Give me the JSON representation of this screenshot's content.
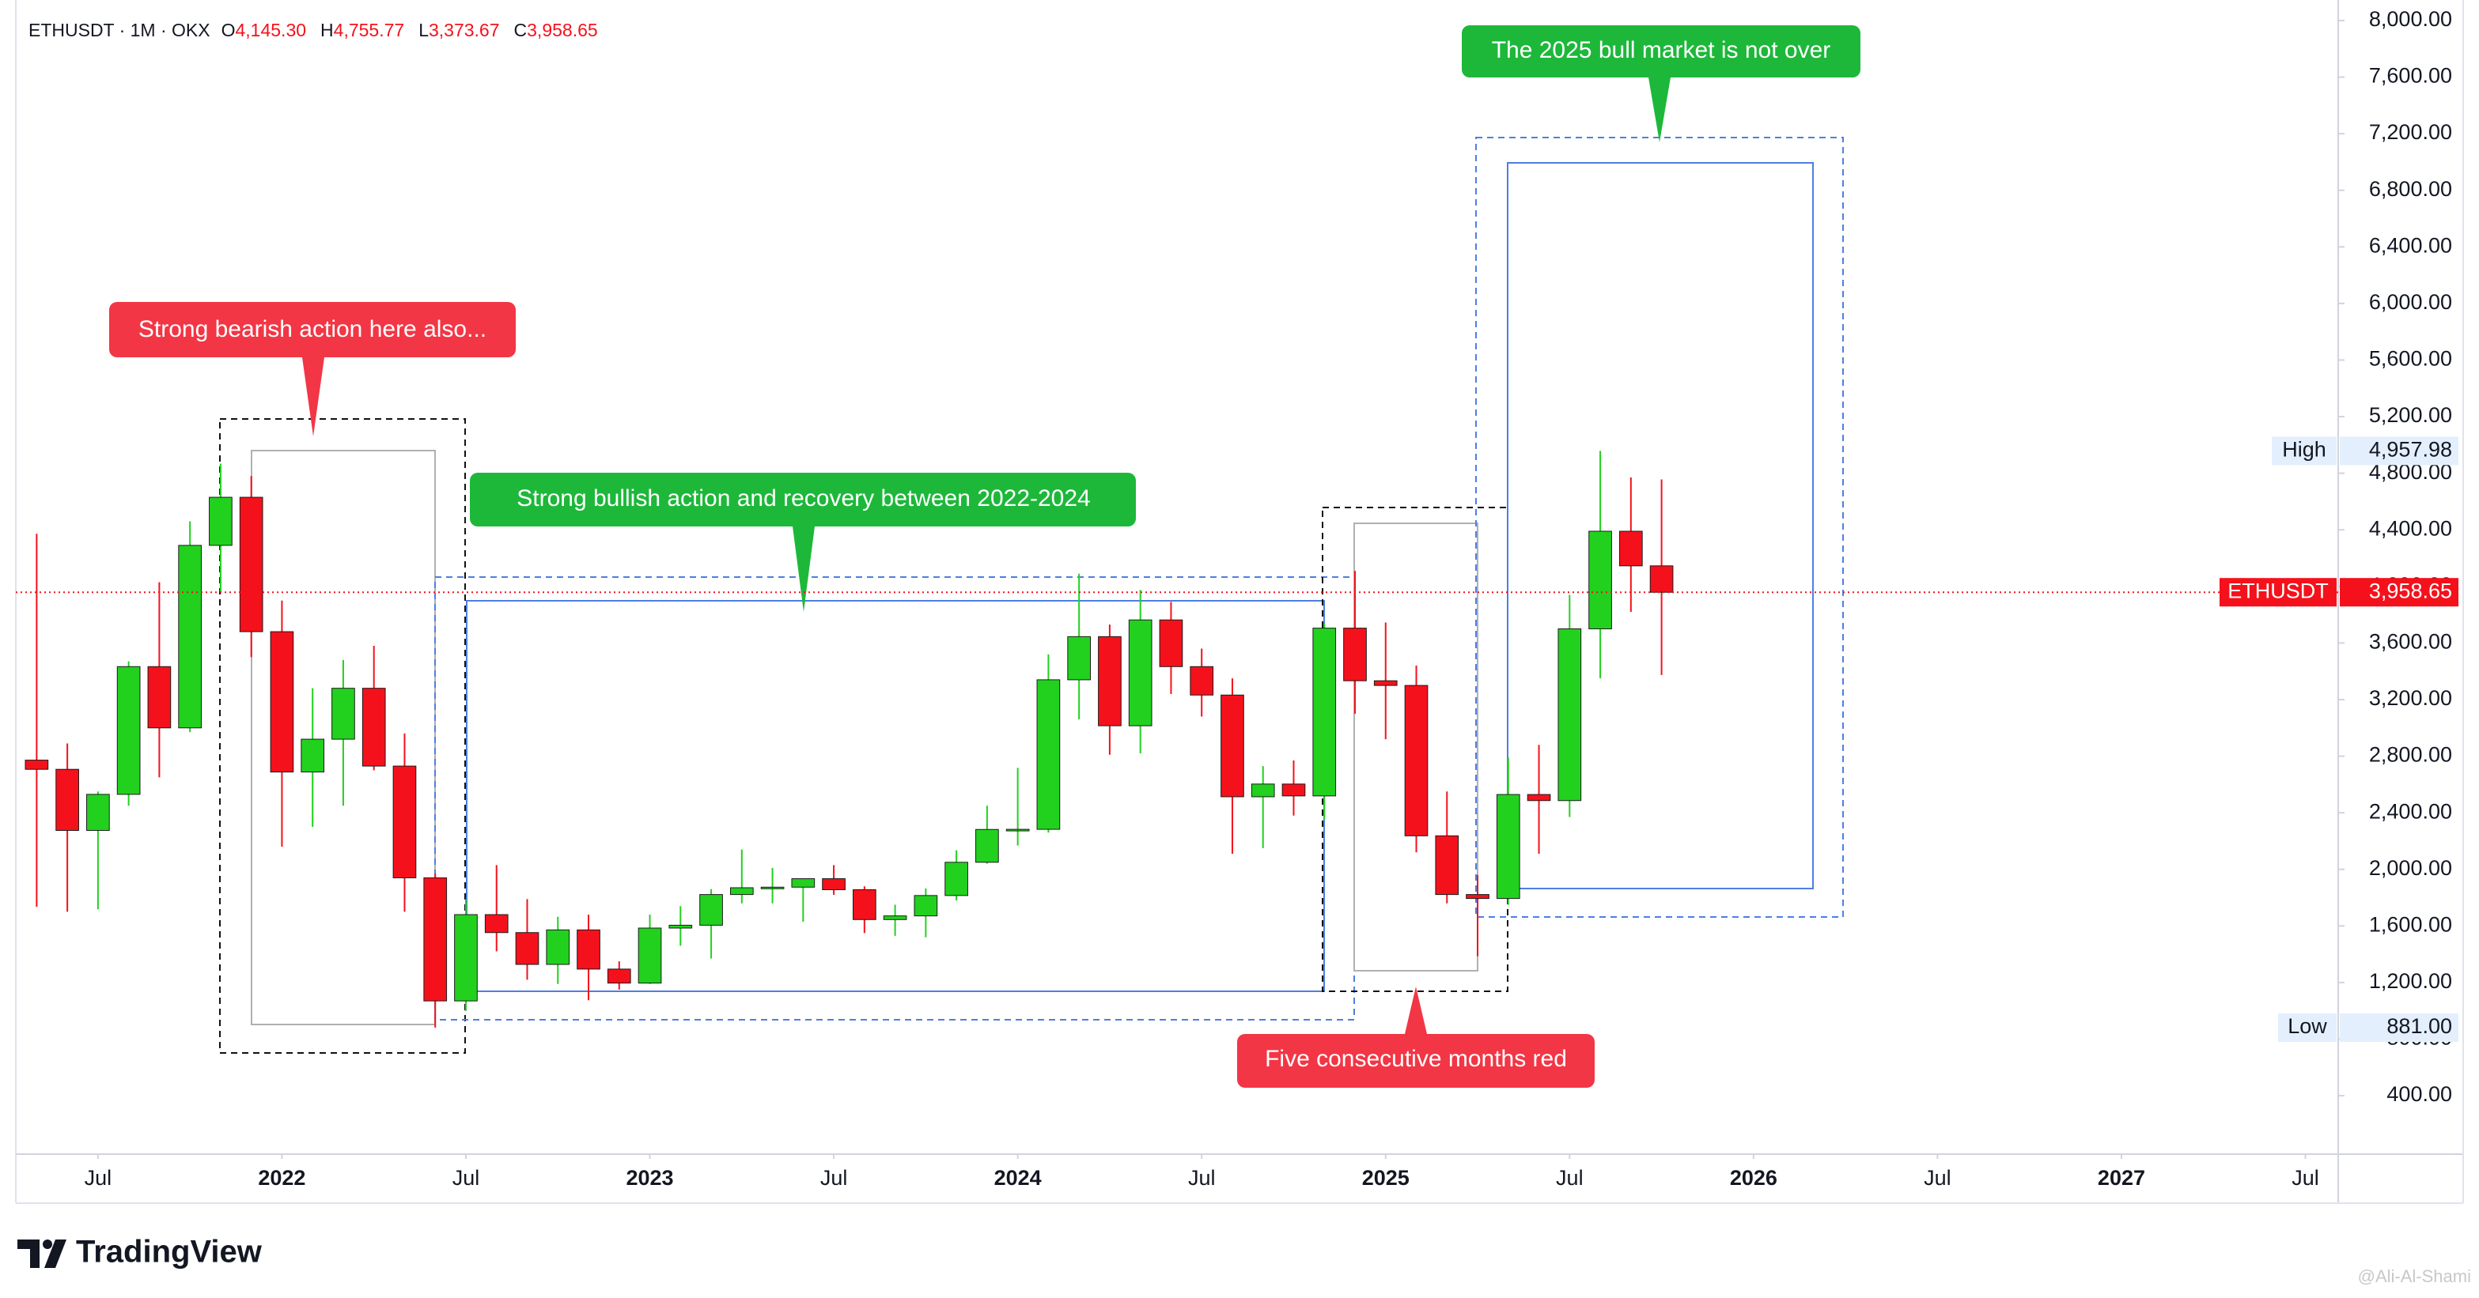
{
  "chart_data": {
    "type": "candlestick",
    "symbol_line": "ETHUSDT · 1M · OKX",
    "ohlc_legend": [
      {
        "key": "O",
        "text": "4,145.30"
      },
      {
        "key": "H",
        "text": "4,755.77"
      },
      {
        "key": "L",
        "text": "3,373.67"
      },
      {
        "key": "C",
        "text": "3,958.65"
      }
    ],
    "up_color": "#22d11e",
    "down_color": "#f5111b",
    "x": [
      0,
      1,
      2,
      3,
      4,
      5,
      6,
      7,
      8,
      9,
      10,
      11,
      12,
      13,
      14,
      15,
      16,
      17,
      18,
      19,
      20,
      21,
      22,
      23,
      24,
      25,
      26,
      27,
      28,
      29,
      30,
      31,
      32,
      33,
      34,
      35,
      36,
      37,
      38,
      39,
      40,
      41,
      42,
      43,
      44,
      45,
      46,
      47,
      48,
      49,
      50,
      51,
      52,
      53
    ],
    "open": [
      2772,
      2707,
      2275,
      2530,
      3433,
      3000,
      4290,
      4630,
      3680,
      2688,
      2920,
      3280,
      2730,
      1940,
      1070,
      1680,
      1553,
      1328,
      1572,
      1295,
      1196,
      1585,
      1605,
      1822,
      1870,
      1874,
      1934,
      1856,
      1645,
      1671,
      1815,
      2050,
      2282,
      2283,
      3340,
      3645,
      3015,
      3763,
      3433,
      3232,
      2513,
      2603,
      2519,
      3705,
      3333,
      3300,
      2237,
      1822,
      1794,
      2529,
      2486,
      3700,
      4390,
      4145.3
    ],
    "high": [
      4372,
      2890,
      2550,
      3470,
      4030,
      4460,
      4868,
      4780,
      3900,
      3280,
      3480,
      3580,
      2960,
      1970,
      1790,
      2030,
      1790,
      1665,
      1680,
      1350,
      1680,
      1740,
      1860,
      2140,
      2010,
      1930,
      2030,
      1880,
      1750,
      1865,
      2135,
      2450,
      2717,
      3520,
      4090,
      3730,
      3975,
      3890,
      3560,
      3350,
      2730,
      2770,
      3740,
      4110,
      3745,
      3440,
      2550,
      1960,
      2790,
      2880,
      3940,
      4957.98,
      4770,
      4755.77
    ],
    "low": [
      1735,
      1700,
      1718,
      2450,
      2650,
      2970,
      3960,
      3500,
      2160,
      2300,
      2450,
      2700,
      1700,
      881,
      1000,
      1420,
      1220,
      1190,
      1075,
      1150,
      1190,
      1460,
      1370,
      1760,
      1760,
      1630,
      1820,
      1550,
      1530,
      1520,
      1780,
      2040,
      2168,
      2260,
      3060,
      2810,
      2820,
      3240,
      3080,
      2110,
      2150,
      2380,
      2350,
      3100,
      2920,
      2120,
      1760,
      1385,
      1750,
      2110,
      2370,
      3350,
      3820,
      3373.67
    ],
    "close": [
      2707,
      2275,
      2530,
      3433,
      3000,
      4290,
      4630,
      3680,
      2688,
      2920,
      3280,
      2730,
      1940,
      1070,
      1680,
      1553,
      1328,
      1572,
      1295,
      1196,
      1585,
      1605,
      1822,
      1870,
      1874,
      1934,
      1856,
      1645,
      1671,
      1815,
      2050,
      2282,
      2283,
      3340,
      3645,
      3015,
      3763,
      3433,
      3232,
      2513,
      2603,
      2519,
      3705,
      3333,
      3300,
      2237,
      1822,
      1794,
      2529,
      2486,
      3700,
      4390,
      4145.3,
      3958.65
    ],
    "xlim": [
      -0.68,
      75.07
    ],
    "xticks": [
      {
        "value": 2,
        "label": "Jul"
      },
      {
        "value": 8,
        "label": "2022"
      },
      {
        "value": 14,
        "label": "Jul"
      },
      {
        "value": 20,
        "label": "2023"
      },
      {
        "value": 26,
        "label": "Jul"
      },
      {
        "value": 32,
        "label": "2024"
      },
      {
        "value": 38,
        "label": "Jul"
      },
      {
        "value": 44,
        "label": "2025"
      },
      {
        "value": 50,
        "label": "Jul"
      },
      {
        "value": 56,
        "label": "2026"
      },
      {
        "value": 62,
        "label": "Jul"
      },
      {
        "value": 68,
        "label": "2027"
      },
      {
        "value": 74,
        "label": "Jul"
      }
    ],
    "ylim": [
      -13,
      8145
    ],
    "yticks": [
      {
        "value": 400,
        "label": "400.00"
      },
      {
        "value": 800,
        "label": "800.00"
      },
      {
        "value": 1200,
        "label": "1,200.00"
      },
      {
        "value": 1600,
        "label": "1,600.00"
      },
      {
        "value": 2000,
        "label": "2,000.00"
      },
      {
        "value": 2400,
        "label": "2,400.00"
      },
      {
        "value": 2800,
        "label": "2,800.00"
      },
      {
        "value": 3200,
        "label": "3,200.00"
      },
      {
        "value": 3600,
        "label": "3,600.00"
      },
      {
        "value": 4000,
        "label": "4,000.00"
      },
      {
        "value": 4400,
        "label": "4,400.00"
      },
      {
        "value": 4800,
        "label": "4,800.00"
      },
      {
        "value": 5200,
        "label": "5,200.00"
      },
      {
        "value": 5600,
        "label": "5,600.00"
      },
      {
        "value": 6000,
        "label": "6,000.00"
      },
      {
        "value": 6400,
        "label": "6,400.00"
      },
      {
        "value": 6800,
        "label": "6,800.00"
      },
      {
        "value": 7200,
        "label": "7,200.00"
      },
      {
        "value": 7600,
        "label": "7,600.00"
      },
      {
        "value": 8000,
        "label": "8,000.00"
      }
    ],
    "high_marker": {
      "name": "High",
      "value": 4957.98,
      "label": "4,957.98"
    },
    "low_marker": {
      "name": "Low",
      "value": 881,
      "label": "881.00"
    },
    "last_price": {
      "name": "ETHUSDT",
      "value": 3958.65,
      "label": "3,958.65"
    },
    "annotations": [
      "Strong bearish action here also...",
      "Strong bullish action and recovery between 2022-2024",
      "The 2025 bull market is not over",
      "Five consecutive months red"
    ],
    "brand": "TradingView",
    "watermark": "@Ali-Al-Shami"
  }
}
